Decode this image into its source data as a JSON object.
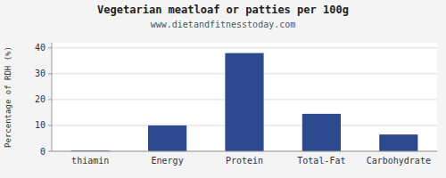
{
  "chart_data": {
    "type": "bar",
    "title": "Vegetarian meatloaf or patties per 100g",
    "subtitle": "www.dietandfitnesstoday.com",
    "categories": [
      "thiamin",
      "Energy",
      "Protein",
      "Total-Fat",
      "Carbohydrate"
    ],
    "values": [
      0.3,
      10,
      38,
      14.5,
      6.5
    ],
    "color": "#2e4a8e",
    "ylabel": "Percentage of RDH (%)",
    "ylim": [
      0,
      42
    ],
    "yticks": [
      0,
      10,
      20,
      30,
      40
    ],
    "grid": true
  }
}
